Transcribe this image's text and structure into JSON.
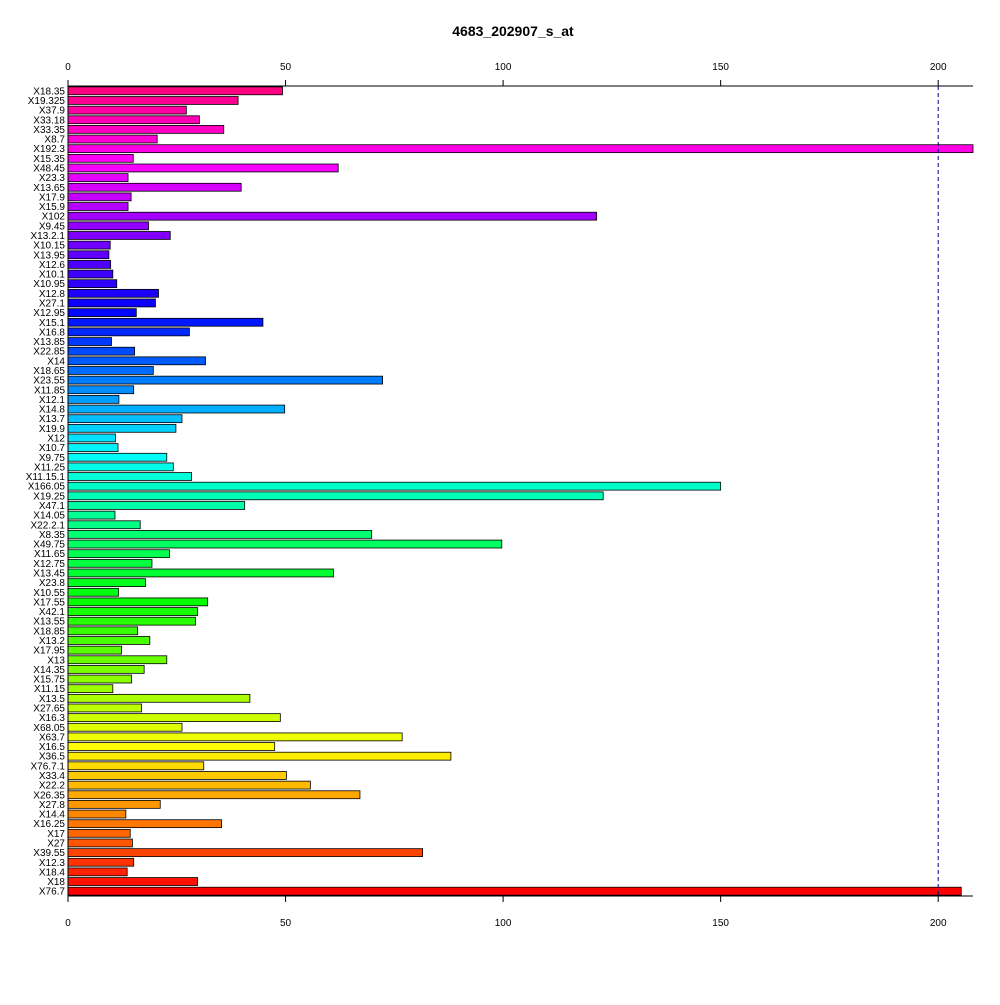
{
  "chart_data": {
    "type": "bar",
    "orientation": "horizontal",
    "title": "4683_202907_s_at",
    "xlabel": "",
    "ylabel": "",
    "xlim": [
      0,
      208
    ],
    "x_ticks": [
      0,
      50,
      100,
      150,
      200
    ],
    "reference_line": {
      "value": 200,
      "style": "dashed",
      "color": "#00008b"
    },
    "grid": false,
    "legend": "none",
    "categories": [
      "X18.35",
      "X19.325",
      "X37.9",
      "X33.18",
      "X33.35",
      "X8.7",
      "X192.3",
      "X15.35",
      "X48.45",
      "X23.3",
      "X13.65",
      "X17.9",
      "X15.9",
      "X102",
      "X9.45",
      "X13.2.1",
      "X10.15",
      "X13.95",
      "X12.6",
      "X10.1",
      "X10.95",
      "X12.8",
      "X27.1",
      "X12.95",
      "X15.1",
      "X16.8",
      "X13.85",
      "X22.85",
      "X14",
      "X18.65",
      "X23.55",
      "X11.85",
      "X12.1",
      "X14.8",
      "X13.7",
      "X19.9",
      "X12",
      "X10.7",
      "X9.75",
      "X11.25",
      "X11.15.1",
      "X166.05",
      "X19.25",
      "X47.1",
      "X14.05",
      "X22.2.1",
      "X8.35",
      "X49.75",
      "X11.65",
      "X12.75",
      "X13.45",
      "X23.8",
      "X10.55",
      "X17.55",
      "X42.1",
      "X13.55",
      "X18.85",
      "X13.2",
      "X17.95",
      "X13",
      "X14.35",
      "X15.75",
      "X11.15",
      "X13.5",
      "X27.65",
      "X16.3",
      "X68.05",
      "X63.7",
      "X16.5",
      "X36.5",
      "X76.7.1",
      "X33.4",
      "X22.2",
      "X26.35",
      "X27.8",
      "X14.4",
      "X16.25",
      "X17",
      "X27",
      "X39.55",
      "X12.3",
      "X18.4",
      "X18",
      "X76.7"
    ],
    "values": [
      49.3,
      39.1,
      27.2,
      30.2,
      35.8,
      20.5,
      208,
      15.0,
      62.1,
      13.8,
      39.8,
      14.5,
      13.8,
      121.5,
      18.5,
      23.5,
      9.7,
      9.4,
      9.8,
      10.3,
      11.2,
      20.8,
      20.1,
      15.7,
      44.8,
      27.9,
      10.0,
      15.3,
      31.6,
      19.6,
      72.3,
      15.1,
      11.7,
      49.8,
      26.2,
      24.8,
      10.9,
      11.5,
      22.7,
      24.2,
      28.4,
      150.0,
      123.0,
      40.6,
      10.8,
      16.6,
      69.8,
      99.7,
      23.3,
      19.3,
      61.0,
      17.8,
      11.6,
      32.1,
      29.8,
      29.3,
      16.0,
      18.8,
      12.3,
      22.7,
      17.5,
      14.6,
      10.3,
      41.8,
      16.9,
      48.8,
      26.2,
      76.8,
      47.5,
      88.0,
      31.2,
      50.2,
      55.7,
      67.1,
      21.2,
      13.3,
      35.3,
      14.3,
      14.8,
      81.5,
      15.1,
      13.6,
      29.8,
      205.3
    ]
  }
}
